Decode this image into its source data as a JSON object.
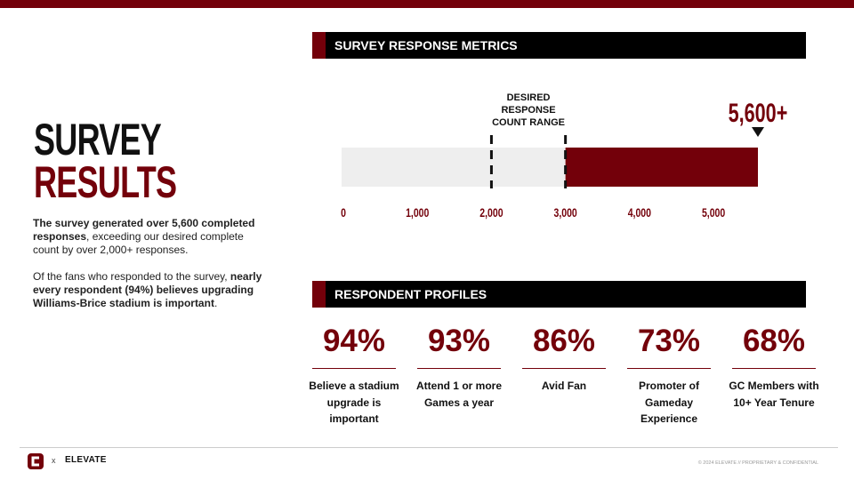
{
  "header": {
    "title_line1": "SURVEY",
    "title_line2": "RESULTS"
  },
  "intro": {
    "paragraph1": {
      "bold": "The survey generated over 5,600 completed responses",
      "text": ", exceeding our desired complete count by over 2,000+ responses."
    },
    "paragraph2": {
      "text": "Of the fans who responded to the survey, ",
      "bold": "nearly every respondent (94%) believes upgrading Williams-Brice stadium is important",
      "end": "."
    }
  },
  "metrics": {
    "heading": "SURVEY RESPONSE METRICS",
    "value": 5600,
    "value_label": "5,600+",
    "desired_range": [
      2000,
      3000
    ],
    "range_label": "DESIRED RESPONSE COUNT RANGE",
    "xlim": [
      0,
      5600
    ],
    "xticks": [
      0,
      {
        "value": 1000,
        "label": "1,000"
      },
      {
        "value": 2000,
        "label": "2,000"
      },
      {
        "value": 3000,
        "label": "3,000"
      },
      {
        "value": 4000,
        "label": "4,000"
      },
      {
        "value": 5000,
        "label": "5,000"
      }
    ]
  },
  "profiles": {
    "heading": "RESPONDENT PROFILES",
    "items": [
      {
        "value": "94%",
        "label": "Believe a stadium upgrade is important"
      },
      {
        "value": "93%",
        "label": "Attend 1 or more Games a year"
      },
      {
        "value": "86%",
        "label": "Avid Fan"
      },
      {
        "value": "73%",
        "label": "Promoter of Gameday Experience"
      },
      {
        "value": "68%",
        "label": "GC Members with 10+ Year Tenure"
      }
    ]
  },
  "footer": {
    "separator": "x",
    "brand": "ELEVATE",
    "copyright": "© 2024 ELEVATE // PROPRIETARY & CONFIDENTIAL"
  }
}
